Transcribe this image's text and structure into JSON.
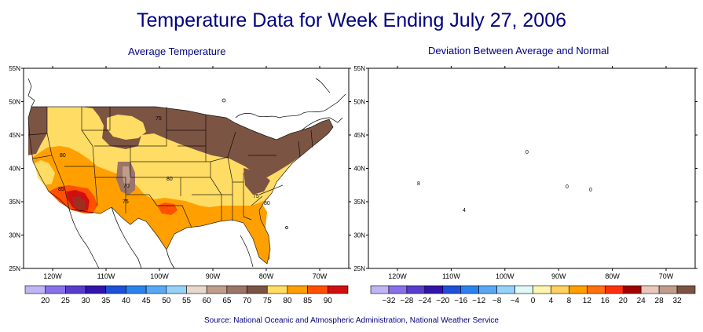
{
  "title": "Temperature Data for Week Ending July 27, 2006",
  "source": "Source:  National Oceanic and Atmospheric Administration, National Weather Service",
  "maps": [
    {
      "subtitle": "Average Temperature",
      "lat_labels": [
        "55N",
        "50N",
        "45N",
        "40N",
        "35N",
        "30N",
        "25N"
      ],
      "lon_labels": [
        "120W",
        "110W",
        "100W",
        "90W",
        "80W",
        "70W"
      ],
      "contour_labels": [
        "75",
        "80",
        "85",
        "70",
        "75",
        "80",
        "75",
        "80"
      ],
      "legend": {
        "labels": [
          "20",
          "25",
          "30",
          "35",
          "40",
          "45",
          "50",
          "55",
          "60",
          "65",
          "70",
          "75",
          "80",
          "85",
          "90"
        ],
        "colors": [
          "#c0b4f4",
          "#8870e8",
          "#5a3ccc",
          "#3214a8",
          "#1e50d8",
          "#2c82ec",
          "#5aa8f4",
          "#96d2f8",
          "#e8d8cc",
          "#c09c8c",
          "#9c7468",
          "#7c5444",
          "#ffdc64",
          "#ffa000",
          "#ff5000",
          "#d01010"
        ]
      }
    },
    {
      "subtitle": "Deviation Between Average and Normal",
      "lat_labels": [
        "55N",
        "50N",
        "45N",
        "40N",
        "35N",
        "30N",
        "25N"
      ],
      "lon_labels": [
        "120W",
        "110W",
        "100W",
        "90W",
        "80W",
        "70W"
      ],
      "contour_labels": [
        "8",
        "0",
        "0",
        "0",
        "4"
      ],
      "legend": {
        "labels": [
          "−32",
          "−28",
          "−24",
          "−20",
          "−16",
          "−12",
          "−8",
          "−4",
          "0",
          "4",
          "8",
          "12",
          "16",
          "20",
          "24",
          "28",
          "32"
        ],
        "colors": [
          "#c0b4f4",
          "#8870e8",
          "#5a3ccc",
          "#3214a8",
          "#1e50d8",
          "#2c82ec",
          "#5aa8f4",
          "#96d2f8",
          "#e0f8f8",
          "#fff4b0",
          "#ffd060",
          "#ffa000",
          "#ff7010",
          "#ff3010",
          "#a00000",
          "#e8c8bc",
          "#c09c8c",
          "#7c5444"
        ]
      }
    }
  ]
}
